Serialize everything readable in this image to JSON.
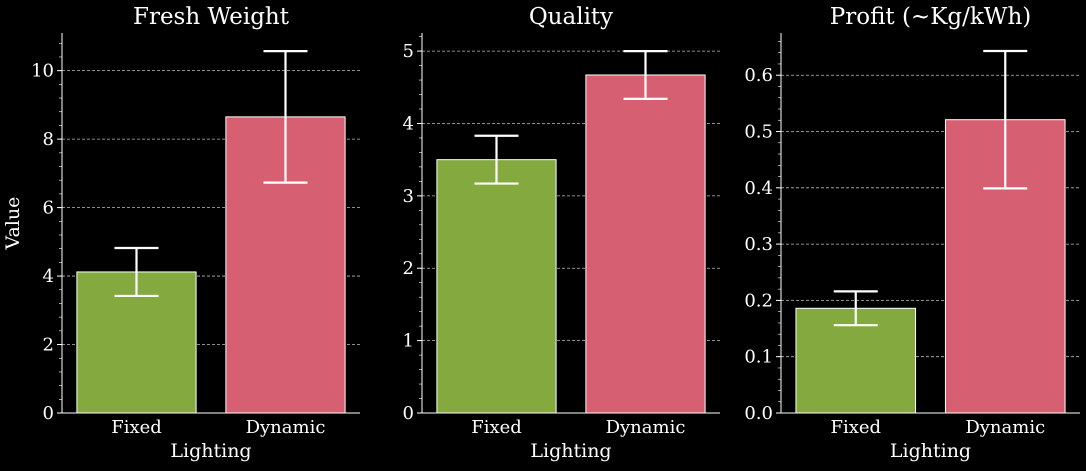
{
  "figure": {
    "background": "#000000",
    "foreground": "#ffffff",
    "grid_color": "#bbbbbb",
    "ylabel": "Value"
  },
  "chart_data": [
    {
      "type": "bar",
      "title": "Fresh Weight",
      "xlabel": "Lighting",
      "ylabel": "Value",
      "categories": [
        "Fixed",
        "Dynamic"
      ],
      "values": [
        4.12,
        8.65
      ],
      "error": [
        0.7,
        1.92
      ],
      "colors": [
        "#84a93e",
        "#d65f72"
      ],
      "ylim": [
        0,
        11.1
      ],
      "yticks": [
        "0",
        "2",
        "4",
        "6",
        "8",
        "10"
      ],
      "grid": "y-dashed"
    },
    {
      "type": "bar",
      "title": "Quality",
      "xlabel": "Lighting",
      "ylabel": "",
      "categories": [
        "Fixed",
        "Dynamic"
      ],
      "values": [
        3.5,
        4.67
      ],
      "error": [
        0.33,
        0.33
      ],
      "colors": [
        "#84a93e",
        "#d65f72"
      ],
      "ylim": [
        0,
        5.25
      ],
      "yticks": [
        "0",
        "1",
        "2",
        "3",
        "4",
        "5"
      ],
      "grid": "y-dashed"
    },
    {
      "type": "bar",
      "title": "Profit (~Kg/kWh)",
      "xlabel": "Lighting",
      "ylabel": "",
      "categories": [
        "Fixed",
        "Dynamic"
      ],
      "values": [
        0.186,
        0.521
      ],
      "error": [
        0.03,
        0.122
      ],
      "colors": [
        "#84a93e",
        "#d65f72"
      ],
      "ylim": [
        0,
        0.675
      ],
      "yticks": [
        "0.0",
        "0.1",
        "0.2",
        "0.3",
        "0.4",
        "0.5",
        "0.6"
      ],
      "grid": "y-dashed"
    }
  ]
}
